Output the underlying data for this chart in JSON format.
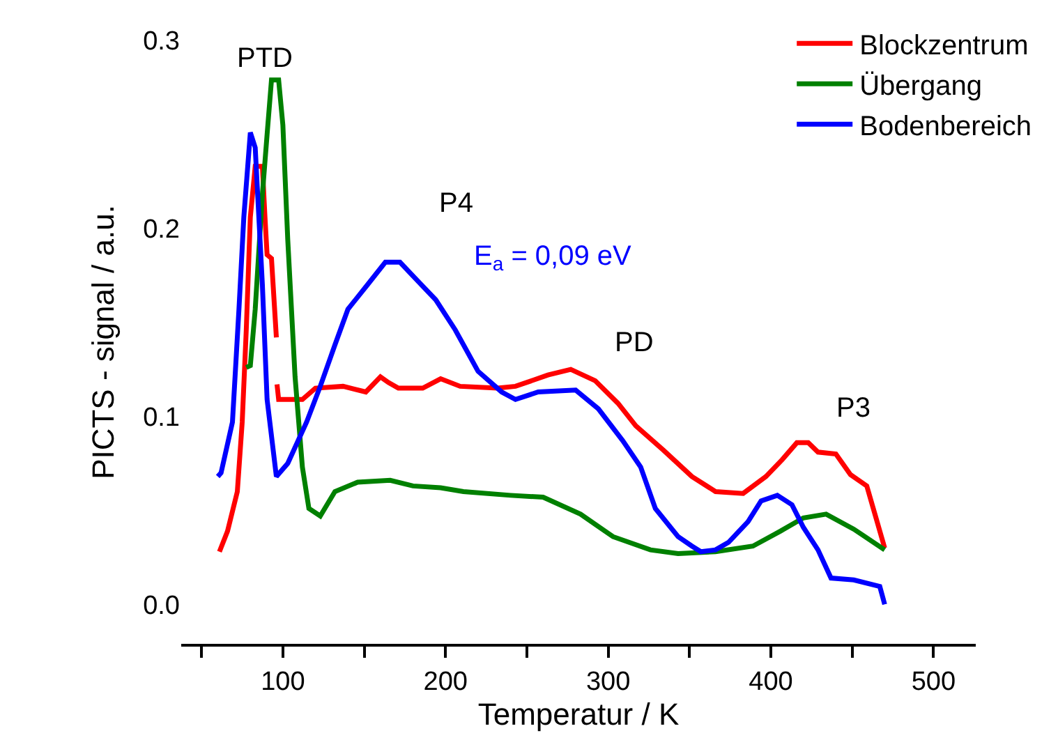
{
  "chart_data": {
    "type": "line",
    "xlabel": "Temperatur / K",
    "ylabel": "PICTS - signal / a.u.",
    "xlim": [
      37.5,
      526
    ],
    "ylim": [
      -0.021,
      0.3
    ],
    "xticks": [
      {
        "value": 50,
        "label": null
      },
      100,
      {
        "value": 150,
        "label": null
      },
      200,
      {
        "value": 250,
        "label": null
      },
      300,
      {
        "value": 350,
        "label": null
      },
      400,
      {
        "value": 450,
        "label": null
      },
      500
    ],
    "yticks": [
      {
        "value": 0,
        "label": "0.0"
      },
      {
        "value": 0.1,
        "label": "0.1"
      },
      {
        "value": 0.2,
        "label": "0.2"
      },
      {
        "value": 0.3,
        "label": "0.3"
      }
    ],
    "legend": "top right",
    "marker": "none",
    "line_style": "solid",
    "annotations": [
      "PTD",
      "P4",
      "E$_{a}$ = 0,09 eV",
      "PD",
      "P3"
    ],
    "series": [
      {
        "name": "Blockzentrum",
        "color": "#ff0000",
        "x": [
          61,
          66,
          72,
          75,
          77.5,
          80,
          83,
          87.4,
          89,
          90.3,
          93,
          96,
          96.2,
          96.4,
          97.4,
          112,
          120,
          137,
          151,
          160,
          165,
          171,
          186,
          197,
          209,
          232,
          243,
          263,
          277,
          292,
          306,
          317,
          334,
          351.5,
          366,
          383,
          397,
          407,
          416,
          423,
          429,
          440,
          449,
          459,
          463,
          470
        ],
        "values": [
          0.028,
          0.039,
          0.06,
          0.097,
          0.146,
          0.206,
          0.233,
          0.233,
          0.206,
          0.186,
          0.184,
          0.142,
          null,
          0.117,
          0.109,
          0.109,
          0.115,
          0.116,
          0.113,
          0.121,
          0.118,
          0.115,
          0.115,
          0.12,
          0.116,
          0.115,
          0.116,
          0.122,
          0.125,
          0.119,
          0.107,
          0.095,
          0.082,
          0.068,
          0.06,
          0.059,
          0.068,
          0.077,
          0.086,
          0.086,
          0.081,
          0.08,
          0.069,
          0.063,
          0.051,
          0.03
        ]
      },
      {
        "name": "Übergang",
        "color": "#008000",
        "x": [
          77.5,
          80,
          83,
          87.4,
          90.3,
          93,
          97.4,
          100,
          103,
          107.5,
          112,
          116,
          123,
          132,
          146,
          166,
          180,
          197,
          211,
          240,
          260,
          283,
          303,
          326,
          343,
          366,
          389,
          406,
          420,
          434,
          451,
          470
        ],
        "values": [
          0.126,
          0.127,
          0.157,
          0.218,
          0.25,
          0.279,
          0.279,
          0.255,
          0.194,
          0.121,
          0.073,
          0.051,
          0.047,
          0.06,
          0.065,
          0.066,
          0.063,
          0.062,
          0.06,
          0.058,
          0.057,
          0.048,
          0.036,
          0.029,
          0.027,
          0.028,
          0.031,
          0.039,
          0.046,
          0.048,
          0.04,
          0.029
        ]
      },
      {
        "name": "Bodenbereich",
        "color": "#0000ff",
        "x": [
          60,
          62,
          69,
          73,
          76,
          80,
          83,
          87.4,
          90.3,
          96,
          103,
          114.6,
          123,
          132,
          140,
          152,
          163,
          172,
          183,
          194,
          206,
          220,
          234.5,
          243,
          257,
          280,
          294,
          309,
          320,
          329,
          343,
          351.5,
          357,
          366,
          374,
          386,
          394,
          404,
          413,
          420,
          429,
          437,
          451,
          467,
          470
        ],
        "values": [
          0.068,
          0.07,
          0.097,
          0.157,
          0.206,
          0.251,
          0.243,
          0.17,
          0.109,
          0.068,
          0.075,
          0.097,
          0.116,
          0.138,
          0.157,
          0.17,
          0.182,
          0.182,
          0.172,
          0.162,
          0.146,
          0.124,
          0.113,
          0.109,
          0.113,
          0.114,
          0.104,
          0.087,
          0.073,
          0.051,
          0.036,
          0.031,
          0.028,
          0.029,
          0.033,
          0.044,
          0.055,
          0.058,
          0.053,
          0.041,
          0.029,
          0.014,
          0.013,
          0.0095,
          0.0
        ]
      }
    ]
  }
}
